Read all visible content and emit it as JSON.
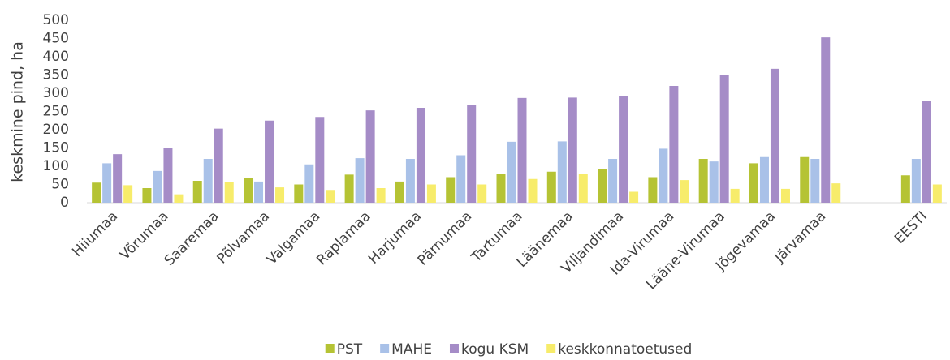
{
  "chart_data": {
    "type": "bar",
    "y_label": "keskmine pind, ha",
    "categories": [
      "Hiiumaa",
      "Võrumaa",
      "Saaremaa",
      "Põlvamaa",
      "Valgamaa",
      "Raplamaa",
      "Harjumaa",
      "Pärnumaa",
      "Tartumaa",
      "Läänemaa",
      "Viljandimaa",
      "Ida-Virumaa",
      "Lääne-Virumaa",
      "Jõgevamaa",
      "Järvamaa",
      null,
      "EESTI"
    ],
    "series": [
      {
        "name": "PST",
        "color": "#b5c334",
        "values": [
          55,
          40,
          60,
          67,
          50,
          77,
          58,
          70,
          80,
          85,
          92,
          70,
          120,
          108,
          125,
          null,
          75
        ]
      },
      {
        "name": "MAHE",
        "color": "#a9c1e8",
        "values": [
          108,
          87,
          120,
          58,
          105,
          122,
          120,
          130,
          167,
          168,
          120,
          148,
          113,
          125,
          120,
          null,
          120
        ]
      },
      {
        "name": "kogu KSM",
        "color": "#a58cc7",
        "values": [
          133,
          150,
          203,
          225,
          235,
          253,
          260,
          268,
          287,
          288,
          292,
          320,
          350,
          367,
          453,
          null,
          280
        ]
      },
      {
        "name": "keskkonnatoetused",
        "color": "#f7ec6b",
        "values": [
          48,
          23,
          57,
          42,
          35,
          40,
          50,
          50,
          65,
          78,
          30,
          62,
          38,
          38,
          53,
          null,
          50
        ]
      }
    ],
    "ylim": [
      0,
      500
    ],
    "yticks": [
      0,
      50,
      100,
      150,
      200,
      250,
      300,
      350,
      400,
      450,
      500
    ],
    "grid": false,
    "legend": "bottom"
  }
}
